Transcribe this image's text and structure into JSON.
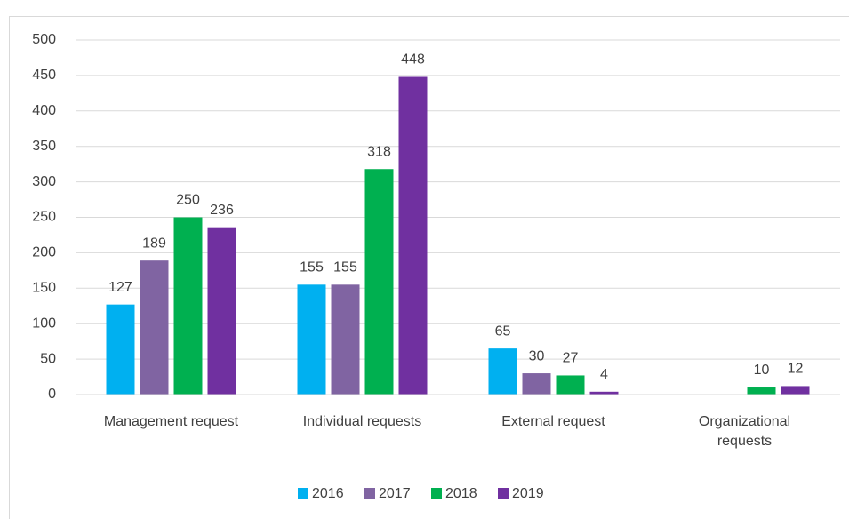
{
  "chart_data": {
    "type": "bar",
    "categories": [
      "Management request",
      "Individual requests",
      "External request",
      "Organizational requests"
    ],
    "series": [
      {
        "name": "2016",
        "color": "#00b0f0",
        "values": [
          127,
          155,
          65,
          null
        ]
      },
      {
        "name": "2017",
        "color": "#8064a2",
        "values": [
          189,
          155,
          30,
          null
        ]
      },
      {
        "name": "2018",
        "color": "#00b050",
        "values": [
          250,
          318,
          27,
          10
        ]
      },
      {
        "name": "2019",
        "color": "#7030a0",
        "values": [
          236,
          448,
          4,
          12
        ]
      }
    ],
    "ylim": [
      0,
      500
    ],
    "yticks": [
      0,
      50,
      100,
      150,
      200,
      250,
      300,
      350,
      400,
      450,
      500
    ],
    "grid": true,
    "legend": "bottom"
  }
}
